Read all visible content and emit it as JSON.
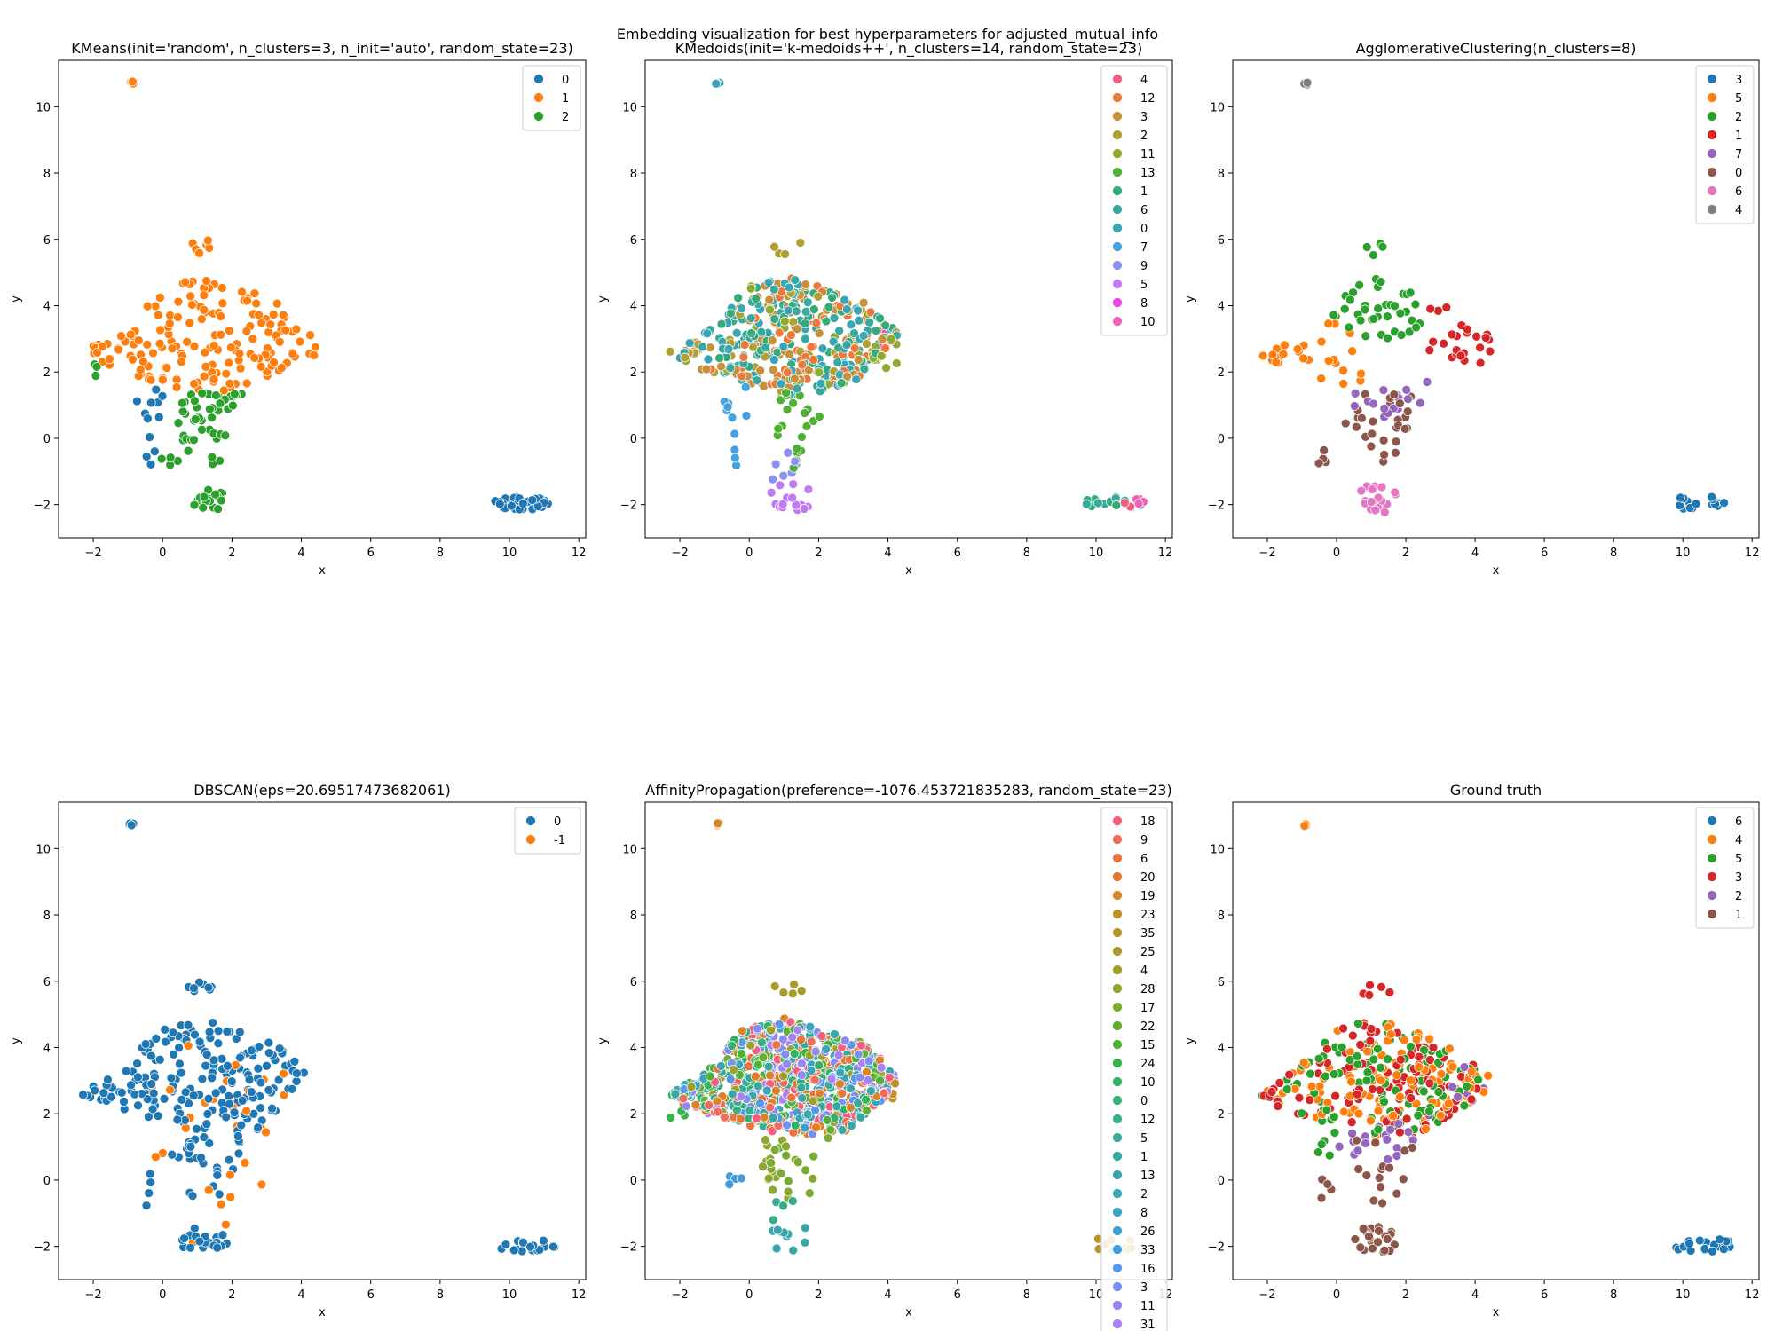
{
  "figure": {
    "suptitle": "Embedding visualization for best hyperparameters for adjusted_mutual_info"
  },
  "chart_data": [
    {
      "type": "scatter",
      "title": "KMeans(init='random', n_clusters=3, n_init='auto', random_state=23)",
      "xlabel": "x",
      "ylabel": "y",
      "xlim": [
        -3,
        12.2
      ],
      "ylim": [
        -3,
        11.4
      ],
      "xticks": [
        -2,
        0,
        2,
        4,
        6,
        8,
        10,
        12
      ],
      "yticks": [
        -2,
        0,
        2,
        4,
        6,
        8,
        10
      ],
      "grid": false,
      "legend_position": "top-right",
      "series": [
        {
          "name": "0",
          "color": "#1f77b4",
          "regions": [
            "islandRight",
            "leftStripe",
            "leftTail"
          ]
        },
        {
          "name": "1",
          "color": "#ff7f0e",
          "regions": [
            "upperBlob",
            "topCap",
            "rightLobe",
            "westArm",
            "topIsland"
          ]
        },
        {
          "name": "2",
          "color": "#2ca02c",
          "regions": [
            "middleStem",
            "bottomBulb",
            "westCluster",
            "midTail"
          ]
        }
      ]
    },
    {
      "type": "scatter",
      "title": "KMedoids(init='k-medoids++', n_clusters=14, random_state=23)",
      "xlabel": "x",
      "ylabel": "y",
      "xlim": [
        -3,
        12.2
      ],
      "ylim": [
        -3,
        11.4
      ],
      "xticks": [
        -2,
        0,
        2,
        4,
        6,
        8,
        10,
        12
      ],
      "yticks": [
        -2,
        0,
        2,
        4,
        6,
        8,
        10
      ],
      "grid": false,
      "legend_position": "top-right",
      "series": [
        {
          "name": "4",
          "color": "#ef5f81",
          "regions": [
            "islandRightEast"
          ]
        },
        {
          "name": "12",
          "color": "#ea7a3b",
          "regions": [
            "upperBlob"
          ]
        },
        {
          "name": "3",
          "color": "#c5913b",
          "regions": [
            "upperBlob",
            "westArm"
          ]
        },
        {
          "name": "2",
          "color": "#b09f32",
          "regions": [
            "westArm",
            "upperBlob",
            "topCap"
          ]
        },
        {
          "name": "11",
          "color": "#8fab32",
          "regions": [
            "rightLobe",
            "upperBlob"
          ]
        },
        {
          "name": "13",
          "color": "#4fb034",
          "regions": [
            "middleStem"
          ]
        },
        {
          "name": "1",
          "color": "#35ab7c",
          "regions": [
            "upperBlob",
            "islandRight"
          ]
        },
        {
          "name": "6",
          "color": "#38a9a0",
          "regions": [
            "upperBlob",
            "islandRight"
          ]
        },
        {
          "name": "0",
          "color": "#3aa5b6",
          "regions": [
            "upperBlob",
            "topIsland"
          ]
        },
        {
          "name": "7",
          "color": "#45a2dc",
          "regions": [
            "leftStripe",
            "leftTail"
          ]
        },
        {
          "name": "9",
          "color": "#8a91f2",
          "regions": [
            "lowerNeck"
          ]
        },
        {
          "name": "5",
          "color": "#c17bf2",
          "regions": [
            "bottomBulb"
          ]
        },
        {
          "name": "8",
          "color": "#ea45e5",
          "regions": [
            "rightTip"
          ]
        },
        {
          "name": "10",
          "color": "#f062b8",
          "regions": [
            "islandRightEast"
          ]
        }
      ]
    },
    {
      "type": "scatter",
      "title": "AgglomerativeClustering(n_clusters=8)",
      "xlabel": "x",
      "ylabel": "y",
      "xlim": [
        -3,
        12.2
      ],
      "ylim": [
        -3,
        11.4
      ],
      "xticks": [
        -2,
        0,
        2,
        4,
        6,
        8,
        10,
        12
      ],
      "yticks": [
        -2,
        0,
        2,
        4,
        6,
        8,
        10
      ],
      "grid": false,
      "legend_position": "top-right",
      "series": [
        {
          "name": "3",
          "color": "#1f77b4",
          "regions": [
            "islandRight"
          ]
        },
        {
          "name": "5",
          "color": "#ff7f0e",
          "regions": [
            "westArm",
            "upperBlobWest"
          ]
        },
        {
          "name": "2",
          "color": "#2ca02c",
          "regions": [
            "upperBlobNorth",
            "topCap"
          ]
        },
        {
          "name": "1",
          "color": "#d62728",
          "regions": [
            "rightLobe",
            "upperBlobEast"
          ]
        },
        {
          "name": "7",
          "color": "#9467bd",
          "regions": [
            "midBand"
          ]
        },
        {
          "name": "0",
          "color": "#8c564b",
          "regions": [
            "middleStem",
            "leftTail"
          ]
        },
        {
          "name": "6",
          "color": "#e377c2",
          "regions": [
            "bottomBulb"
          ]
        },
        {
          "name": "4",
          "color": "#7f7f7f",
          "regions": [
            "topIsland"
          ]
        }
      ]
    },
    {
      "type": "scatter",
      "title": "DBSCAN(eps=20.69517473682061)",
      "xlabel": "x",
      "ylabel": "y",
      "xlim": [
        -3,
        12.2
      ],
      "ylim": [
        -3,
        11.4
      ],
      "xticks": [
        -2,
        0,
        2,
        4,
        6,
        8,
        10,
        12
      ],
      "yticks": [
        -2,
        0,
        2,
        4,
        6,
        8,
        10
      ],
      "grid": false,
      "legend_position": "top-right",
      "series": [
        {
          "name": "0",
          "color": "#1f77b4",
          "regions": [
            "upperBlob",
            "middleStem",
            "bottomBulb",
            "westArm",
            "topCap",
            "islandRight",
            "topIsland",
            "leftTail"
          ]
        },
        {
          "name": "-1",
          "color": "#ff7f0e",
          "regions": [
            "outliers"
          ]
        }
      ]
    },
    {
      "type": "scatter",
      "title": "AffinityPropagation(preference=-1076.453721835283, random_state=23)",
      "xlabel": "x",
      "ylabel": "y",
      "xlim": [
        -3,
        12.2
      ],
      "ylim": [
        -3,
        11.4
      ],
      "xticks": [
        -2,
        0,
        2,
        4,
        6,
        8,
        10,
        12
      ],
      "yticks": [
        -2,
        0,
        2,
        4,
        6,
        8,
        10
      ],
      "grid": false,
      "legend_position": "top-right",
      "series": [
        {
          "name": "18",
          "color": "#f45f7f",
          "regions": [
            "upperBlob"
          ]
        },
        {
          "name": "9",
          "color": "#f06b5d",
          "regions": [
            "upperBlob"
          ]
        },
        {
          "name": "6",
          "color": "#ec733d",
          "regions": [
            "upperBlob"
          ]
        },
        {
          "name": "20",
          "color": "#e27b2c",
          "regions": [
            "upperBlob"
          ]
        },
        {
          "name": "19",
          "color": "#d6862a",
          "regions": [
            "upperBlob",
            "topIsland"
          ]
        },
        {
          "name": "23",
          "color": "#c48f2b",
          "regions": [
            "rightLobe"
          ]
        },
        {
          "name": "35",
          "color": "#b6962c",
          "regions": [
            "islandRight"
          ]
        },
        {
          "name": "25",
          "color": "#a89c2d",
          "regions": [
            "topCap"
          ]
        },
        {
          "name": "4",
          "color": "#9aa12f",
          "regions": [
            "upperBlob"
          ]
        },
        {
          "name": "28",
          "color": "#8ca631",
          "regions": [
            "middleStem"
          ]
        },
        {
          "name": "17",
          "color": "#7aab33",
          "regions": [
            "middleStem"
          ]
        },
        {
          "name": "22",
          "color": "#64ae35",
          "regions": [
            "upperBlob"
          ]
        },
        {
          "name": "15",
          "color": "#4cb237",
          "regions": [
            "upperBlob"
          ]
        },
        {
          "name": "24",
          "color": "#34b445",
          "regions": [
            "westCluster"
          ]
        },
        {
          "name": "10",
          "color": "#33b262",
          "regions": [
            "upperBlob"
          ]
        },
        {
          "name": "0",
          "color": "#35b07a",
          "regions": [
            "upperBlob"
          ]
        },
        {
          "name": "12",
          "color": "#36ad8c",
          "regions": [
            "lowerNeck"
          ]
        },
        {
          "name": "5",
          "color": "#37aa99",
          "regions": [
            "upperBlob"
          ]
        },
        {
          "name": "1",
          "color": "#38a8a4",
          "regions": [
            "upperBlob"
          ]
        },
        {
          "name": "13",
          "color": "#39a6ae",
          "regions": [
            "bottomBulb"
          ]
        },
        {
          "name": "2",
          "color": "#3aa4b8",
          "regions": [
            "upperBlob"
          ]
        },
        {
          "name": "8",
          "color": "#3ba2c3",
          "regions": [
            "upperBlob"
          ]
        },
        {
          "name": "26",
          "color": "#3da0cf",
          "regions": [
            "westArm"
          ]
        },
        {
          "name": "33",
          "color": "#419ddd",
          "regions": [
            "leftTail"
          ]
        },
        {
          "name": "16",
          "color": "#5797ec",
          "regions": [
            "upperBlob"
          ]
        },
        {
          "name": "3",
          "color": "#7a90f0",
          "regions": [
            "upperBlob"
          ]
        },
        {
          "name": "11",
          "color": "#9189f2",
          "regions": [
            "upperBlob"
          ]
        },
        {
          "name": "31",
          "color": "#a882f3",
          "regions": [
            "upperBlob"
          ]
        }
      ]
    },
    {
      "type": "scatter",
      "title": "Ground truth",
      "xlabel": "x",
      "ylabel": "y",
      "xlim": [
        -3,
        12.2
      ],
      "ylim": [
        -3,
        11.4
      ],
      "xticks": [
        -2,
        0,
        2,
        4,
        6,
        8,
        10,
        12
      ],
      "yticks": [
        -2,
        0,
        2,
        4,
        6,
        8,
        10
      ],
      "grid": false,
      "legend_position": "top-right",
      "series": [
        {
          "name": "6",
          "color": "#1f77b4",
          "regions": [
            "islandRight"
          ]
        },
        {
          "name": "4",
          "color": "#ff7f0e",
          "regions": [
            "upperBlob",
            "topIsland",
            "rightLobe"
          ]
        },
        {
          "name": "5",
          "color": "#2ca02c",
          "regions": [
            "upperBlob",
            "leftStripe"
          ]
        },
        {
          "name": "3",
          "color": "#d62728",
          "regions": [
            "upperBlob",
            "westArm",
            "topCap"
          ]
        },
        {
          "name": "2",
          "color": "#9467bd",
          "regions": [
            "midBand",
            "rightLobe"
          ]
        },
        {
          "name": "1",
          "color": "#8c564b",
          "regions": [
            "bottomBulb",
            "middleStem",
            "leftTail"
          ]
        }
      ]
    }
  ]
}
